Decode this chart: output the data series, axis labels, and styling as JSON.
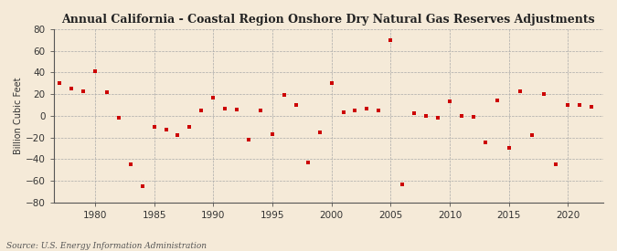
{
  "title": "Annual California - Coastal Region Onshore Dry Natural Gas Reserves Adjustments",
  "ylabel": "Billion Cubic Feet",
  "source": "Source: U.S. Energy Information Administration",
  "background_color": "#f5ead8",
  "plot_background_color": "#f5ead8",
  "marker_color": "#cc0000",
  "marker": "s",
  "marker_size": 3.5,
  "xlim": [
    1976.5,
    2023
  ],
  "ylim": [
    -80,
    80
  ],
  "yticks": [
    -80,
    -60,
    -40,
    -20,
    0,
    20,
    40,
    60,
    80
  ],
  "xticks": [
    1980,
    1985,
    1990,
    1995,
    2000,
    2005,
    2010,
    2015,
    2020
  ],
  "years": [
    1977,
    1978,
    1979,
    1980,
    1981,
    1982,
    1983,
    1984,
    1985,
    1986,
    1987,
    1988,
    1989,
    1990,
    1991,
    1992,
    1993,
    1994,
    1995,
    1996,
    1997,
    1998,
    1999,
    2000,
    2001,
    2002,
    2003,
    2004,
    2005,
    2006,
    2007,
    2008,
    2009,
    2010,
    2011,
    2012,
    2013,
    2014,
    2015,
    2016,
    2017,
    2018,
    2019,
    2020,
    2021,
    2022
  ],
  "values": [
    30,
    25,
    23,
    41,
    22,
    -2,
    -45,
    -65,
    -10,
    -13,
    -18,
    -10,
    5,
    17,
    7,
    6,
    -22,
    5,
    -17,
    19,
    10,
    -43,
    -15,
    30,
    3,
    5,
    7,
    5,
    70,
    -63,
    2,
    0,
    -2,
    13,
    0,
    -1,
    -25,
    14,
    -30,
    23,
    -18,
    20,
    -45,
    10,
    10,
    8
  ],
  "title_fontsize": 9,
  "ylabel_fontsize": 7,
  "tick_fontsize": 7.5,
  "source_fontsize": 6.5,
  "grid_color": "#aaaaaa",
  "grid_linestyle": "--",
  "grid_linewidth": 0.5,
  "spine_color": "#555555"
}
